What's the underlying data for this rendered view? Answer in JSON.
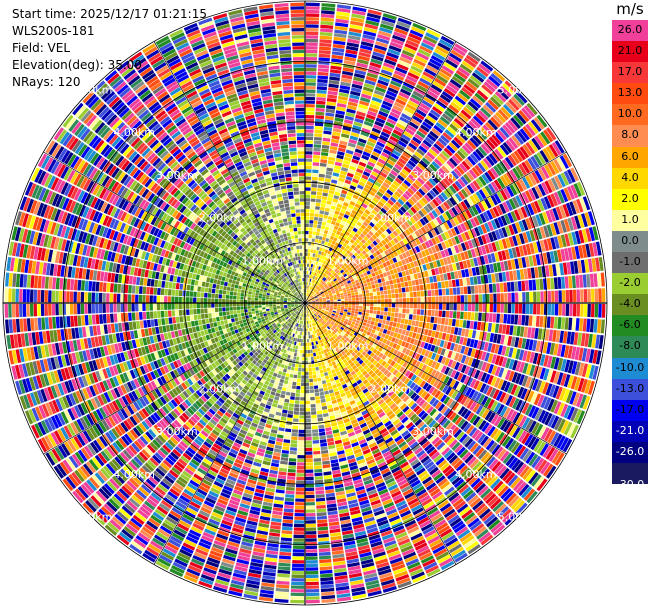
{
  "info": {
    "start_time": "Start time: 2025/12/17 01:21:15",
    "instrument": "WLS200s-181",
    "field": "Field: VEL",
    "elevation": "Elevation(deg): 35.00",
    "nrays": "NRays: 120"
  },
  "colorbar": {
    "units": "m/s",
    "levels": [
      {
        "label": "26.0",
        "color": "#f0409a",
        "text_color": "#000000"
      },
      {
        "label": "21.0",
        "color": "#e8001a",
        "text_color": "#000000"
      },
      {
        "label": "17.0",
        "color": "#f83838",
        "text_color": "#000000"
      },
      {
        "label": "13.0",
        "color": "#ff4a10",
        "text_color": "#000000"
      },
      {
        "label": "10.0",
        "color": "#ff6a20",
        "text_color": "#000000"
      },
      {
        "label": "8.0",
        "color": "#ff8c50",
        "text_color": "#000000"
      },
      {
        "label": "6.0",
        "color": "#ffa600",
        "text_color": "#000000"
      },
      {
        "label": "4.0",
        "color": "#ffd800",
        "text_color": "#000000"
      },
      {
        "label": "2.0",
        "color": "#ffff00",
        "text_color": "#000000"
      },
      {
        "label": "1.0",
        "color": "#ffffa0",
        "text_color": "#000000"
      },
      {
        "label": "0.0",
        "color": "#7f8c8c",
        "text_color": "#000000"
      },
      {
        "label": "-1.0",
        "color": "#6e6e6e",
        "text_color": "#000000"
      },
      {
        "label": "-2.0",
        "color": "#9acd32",
        "text_color": "#000000"
      },
      {
        "label": "-4.0",
        "color": "#6b8e23",
        "text_color": "#000000"
      },
      {
        "label": "-6.0",
        "color": "#228b22",
        "text_color": "#000000"
      },
      {
        "label": "-8.0",
        "color": "#2e8b57",
        "text_color": "#000000"
      },
      {
        "label": "-10.0",
        "color": "#1e8cd2",
        "text_color": "#000000"
      },
      {
        "label": "-13.0",
        "color": "#3c50dc",
        "text_color": "#000000"
      },
      {
        "label": "-17.0",
        "color": "#0000f0",
        "text_color": "#000000"
      },
      {
        "label": "-21.0",
        "color": "#0000b4",
        "text_color": "#ffffff"
      },
      {
        "label": "-26.0",
        "color": "#000080",
        "text_color": "#ffffff"
      },
      {
        "label": "",
        "color": "#1a1a60",
        "text_color": "#ffffff"
      }
    ],
    "bottom_label": "-30.0"
  },
  "chart_data": {
    "type": "heatmap",
    "projection": "polar-ppi",
    "field": "VEL",
    "units": "m/s",
    "nrays": 120,
    "elevation_deg": 35.0,
    "range_ring_labels": [
      "1.00km",
      "2.00km",
      "3.00km",
      "4.00km",
      "5.00km"
    ],
    "range_ring_values_km": [
      1,
      2,
      3,
      4,
      5
    ],
    "max_range_km": 5.0,
    "color_levels": [
      -30,
      -26,
      -21,
      -17,
      -13,
      -10,
      -8,
      -6,
      -4,
      -2,
      -1,
      0,
      1,
      2,
      4,
      6,
      8,
      10,
      13,
      17,
      21,
      26
    ],
    "velocity_pattern": {
      "inner_east_mean_ms": 7,
      "inner_west_mean_ms": -5,
      "outer_noise_range_ms": [
        -30,
        30
      ],
      "noise_onset_km": 3.0
    },
    "grid": true,
    "legend": "right"
  }
}
